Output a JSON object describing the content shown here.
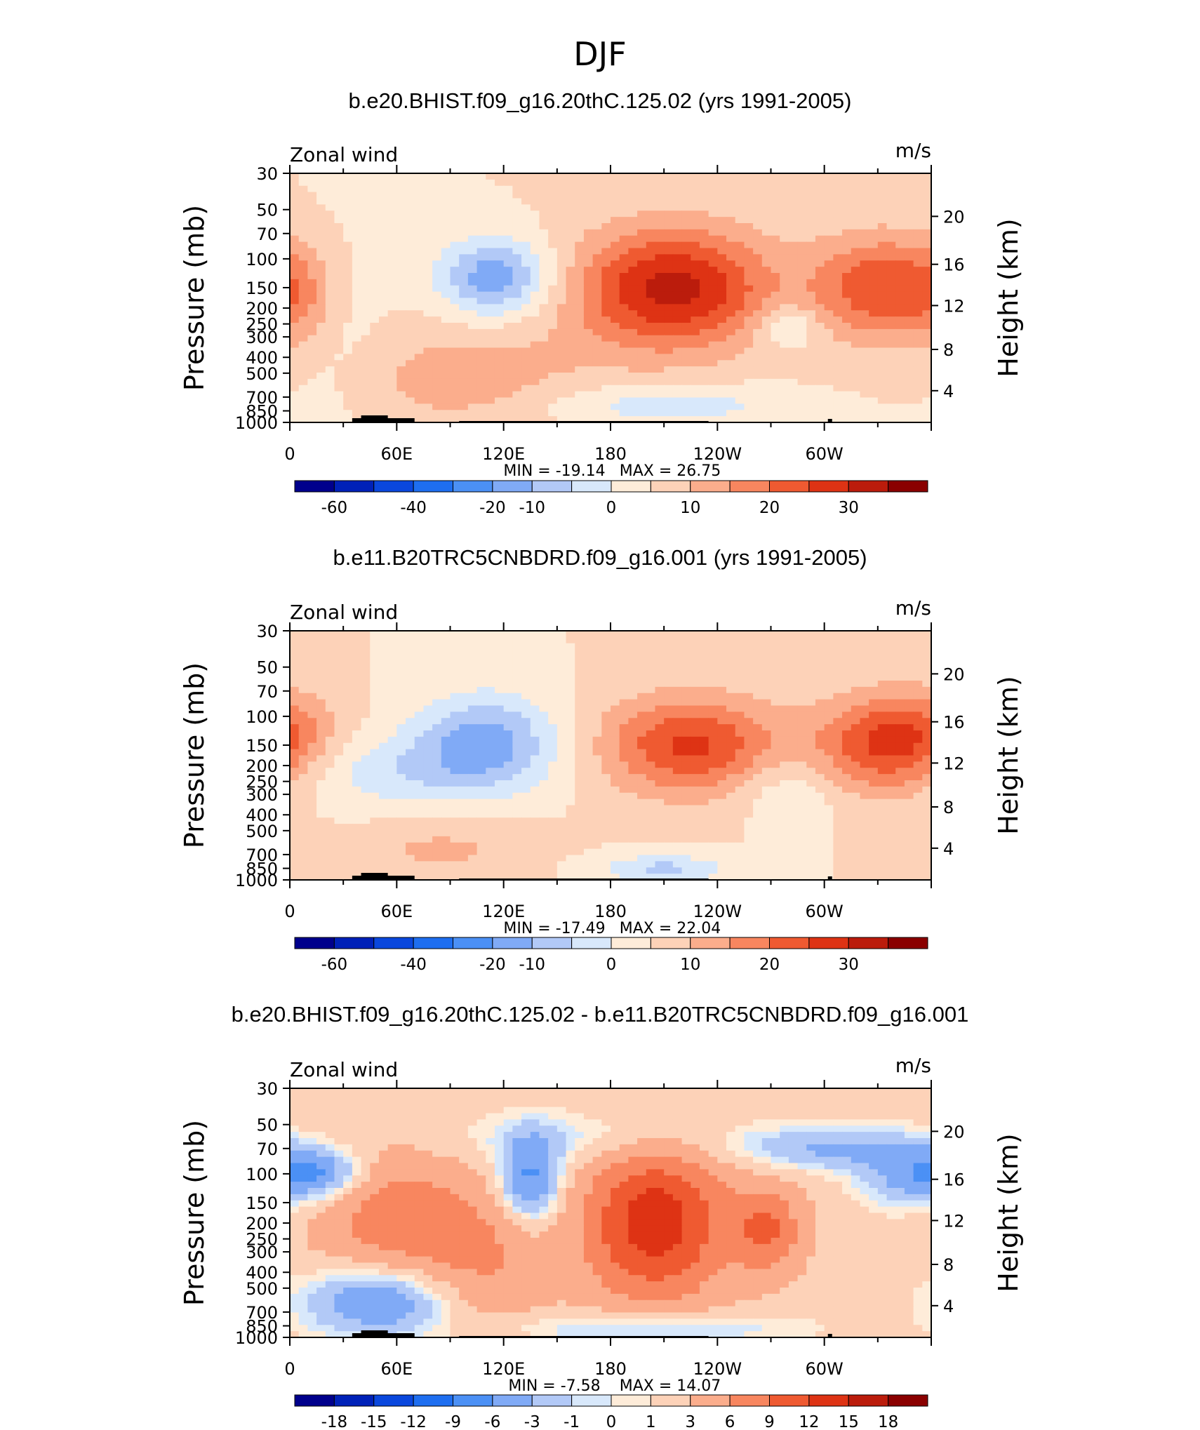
{
  "figure_title": "DJF",
  "chart_data": [
    {
      "type": "heatmap",
      "title": "b.e20.BHIST.f09_g16.20thC.125.02 (yrs 1991-2005)",
      "left_label": "Zonal wind",
      "right_label": "m/s",
      "ylabel": "Pressure (mb)",
      "ylabel_right": "Height (km)",
      "x_ticks": [
        "0",
        "60E",
        "120E",
        "180",
        "120W",
        "60W"
      ],
      "y_ticks": [
        "30",
        "50",
        "70",
        "100",
        "150",
        "200",
        "250",
        "300",
        "400",
        "500",
        "700",
        "850",
        "1000"
      ],
      "y_ticks_right": [
        "20",
        "16",
        "12",
        "8",
        "4"
      ],
      "min_label": "MIN = -19.14",
      "max_label": "MAX = 26.75",
      "colorbar_ticks": [
        "-60",
        "-40",
        "-20",
        "-10",
        "0",
        "10",
        "20",
        "30"
      ],
      "field": {
        "bg": 0,
        "blobs": [
          {
            "lon": 115,
            "p": 130,
            "w": 22,
            "h": 0.11,
            "v": -19
          },
          {
            "lon": 215,
            "p": 150,
            "w": 38,
            "h": 0.17,
            "v": 27
          },
          {
            "lon": 332,
            "p": 150,
            "w": 28,
            "h": 0.15,
            "v": 19
          },
          {
            "lon": 365,
            "p": 170,
            "w": 14,
            "h": 0.15,
            "v": 7
          },
          {
            "lon": 280,
            "p": 260,
            "w": 12,
            "h": 0.06,
            "v": -10
          },
          {
            "lon": 90,
            "p": 560,
            "w": 40,
            "h": 0.12,
            "v": 6
          },
          {
            "lon": 25,
            "p": 300,
            "w": 20,
            "h": 0.3,
            "v": -3
          },
          {
            "lon": 210,
            "p": 780,
            "w": 45,
            "h": 0.06,
            "v": -9
          },
          {
            "lon": 135,
            "p": 420,
            "w": 60,
            "h": 0.18,
            "v": 3
          }
        ]
      }
    },
    {
      "type": "heatmap",
      "title": "b.e11.B20TRC5CNBDRD.f09_g16.001 (yrs 1991-2005)",
      "left_label": "Zonal wind",
      "right_label": "m/s",
      "ylabel": "Pressure (mb)",
      "ylabel_right": "Height (km)",
      "x_ticks": [
        "0",
        "60E",
        "120E",
        "180",
        "120W",
        "60W"
      ],
      "y_ticks": [
        "30",
        "50",
        "70",
        "100",
        "150",
        "200",
        "250",
        "300",
        "400",
        "500",
        "700",
        "850",
        "1000"
      ],
      "y_ticks_right": [
        "20",
        "16",
        "12",
        "8",
        "4"
      ],
      "min_label": "MIN = -17.49",
      "max_label": "MAX = 22.04",
      "colorbar_ticks": [
        "-60",
        "-40",
        "-20",
        "-10",
        "0",
        "10",
        "20",
        "30"
      ],
      "field": {
        "bg": 0,
        "blobs": [
          {
            "lon": 110,
            "p": 140,
            "w": 28,
            "h": 0.13,
            "v": -17
          },
          {
            "lon": 60,
            "p": 220,
            "w": 45,
            "h": 0.1,
            "v": -8
          },
          {
            "lon": 225,
            "p": 150,
            "w": 35,
            "h": 0.14,
            "v": 21
          },
          {
            "lon": 335,
            "p": 150,
            "w": 28,
            "h": 0.14,
            "v": 21
          },
          {
            "lon": 280,
            "p": 280,
            "w": 20,
            "h": 0.1,
            "v": -6
          },
          {
            "lon": 85,
            "p": 650,
            "w": 35,
            "h": 0.08,
            "v": 6
          },
          {
            "lon": 210,
            "p": 850,
            "w": 25,
            "h": 0.04,
            "v": -11
          },
          {
            "lon": 360,
            "p": 120,
            "w": 20,
            "h": 0.12,
            "v": 5
          }
        ]
      }
    },
    {
      "type": "heatmap",
      "title": "b.e20.BHIST.f09_g16.20thC.125.02 - b.e11.B20TRC5CNBDRD.f09_g16.001",
      "left_label": "Zonal wind",
      "right_label": "m/s",
      "ylabel": "Pressure (mb)",
      "ylabel_right": "Height (km)",
      "x_ticks": [
        "0",
        "60E",
        "120E",
        "180",
        "120W",
        "60W"
      ],
      "y_ticks": [
        "30",
        "50",
        "70",
        "100",
        "150",
        "200",
        "250",
        "300",
        "400",
        "500",
        "700",
        "850",
        "1000"
      ],
      "y_ticks_right": [
        "20",
        "16",
        "12",
        "8",
        "4"
      ],
      "min_label": "MIN = -7.58",
      "max_label": "MAX = 14.07",
      "colorbar_ticks": [
        "-18",
        "-15",
        "-12",
        "-9",
        "-6",
        "-3",
        "-1",
        "0",
        "1",
        "3",
        "6",
        "9",
        "12",
        "15",
        "18"
      ],
      "field": {
        "bg": 2,
        "blobs": [
          {
            "lon": 205,
            "p": 200,
            "w": 28,
            "h": 0.22,
            "v": 12
          },
          {
            "lon": 268,
            "p": 220,
            "w": 14,
            "h": 0.12,
            "v": 7
          },
          {
            "lon": 60,
            "p": 190,
            "w": 30,
            "h": 0.18,
            "v": 6
          },
          {
            "lon": 110,
            "p": 350,
            "w": 25,
            "h": 0.2,
            "v": 4
          },
          {
            "lon": 15,
            "p": 100,
            "w": 18,
            "h": 0.07,
            "v": -8
          },
          {
            "lon": 135,
            "p": 110,
            "w": 12,
            "h": 0.12,
            "v": -9
          },
          {
            "lon": 300,
            "p": 70,
            "w": 35,
            "h": 0.06,
            "v": -5
          },
          {
            "lon": 345,
            "p": 100,
            "w": 20,
            "h": 0.1,
            "v": -5
          },
          {
            "lon": 50,
            "p": 600,
            "w": 30,
            "h": 0.1,
            "v": -8
          },
          {
            "lon": 200,
            "p": 880,
            "w": 60,
            "h": 0.05,
            "v": -4
          },
          {
            "lon": 170,
            "p": 60,
            "w": 60,
            "h": 0.08,
            "v": -3
          }
        ]
      }
    }
  ],
  "colors": {
    "main_scale": [
      "#00008c",
      "#0021b8",
      "#0a47dd",
      "#1e6ef0",
      "#4b90f5",
      "#80aaf6",
      "#b2c9f7",
      "#d8e8fb",
      "#feecd9",
      "#fdd2b8",
      "#fbad8c",
      "#f8865f",
      "#ef5a31",
      "#de3314",
      "#bb1c0c",
      "#8a0000"
    ],
    "diff_scale": [
      "#00008c",
      "#0021b8",
      "#0a47dd",
      "#1e6ef0",
      "#4b90f5",
      "#80aaf6",
      "#b2c9f7",
      "#d8e8fb",
      "#feecd9",
      "#fdd2b8",
      "#fbad8c",
      "#f8865f",
      "#ef5a31",
      "#de3314",
      "#bb1c0c",
      "#8a0000"
    ]
  }
}
